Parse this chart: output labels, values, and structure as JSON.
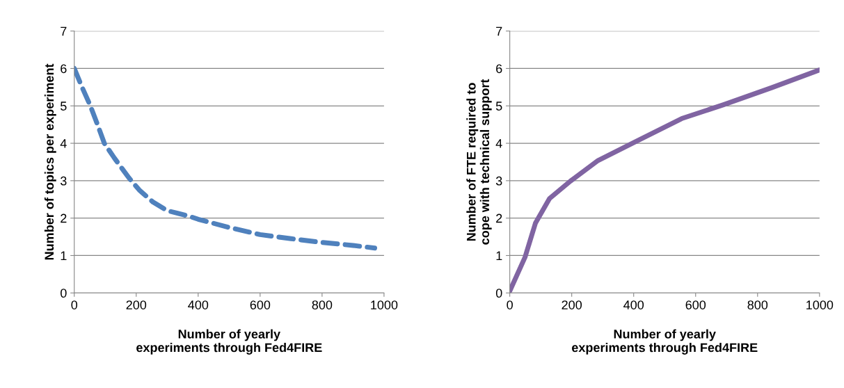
{
  "chart_data": [
    {
      "type": "line",
      "xlabel": "Number of yearly experiments through Fed4FIRE",
      "ylabel": "Number of topics per experiment",
      "xlim": [
        0,
        1000
      ],
      "ylim": [
        0,
        7
      ],
      "xticks": [
        0,
        200,
        400,
        600,
        800,
        1000
      ],
      "yticks": [
        0,
        1,
        2,
        3,
        4,
        5,
        6,
        7
      ],
      "grid": "y",
      "legend": false,
      "line_style": "dashed",
      "series": [
        {
          "color": "#4f81bd",
          "x": [
            0,
            25,
            52,
            75,
            97,
            130,
            176,
            210,
            254,
            300,
            367,
            400,
            500,
            600,
            700,
            800,
            900,
            970
          ],
          "values": [
            6.0,
            5.5,
            5.0,
            4.5,
            4.0,
            3.6,
            3.08,
            2.75,
            2.43,
            2.2,
            2.06,
            1.97,
            1.75,
            1.56,
            1.45,
            1.35,
            1.27,
            1.2
          ]
        }
      ]
    },
    {
      "type": "line",
      "xlabel": "Number of yearly experiments through Fed4FIRE",
      "ylabel": "Number of FTE required to cope with technical support",
      "xlim": [
        0,
        1000
      ],
      "ylim": [
        0,
        7
      ],
      "xticks": [
        0,
        200,
        400,
        600,
        800,
        1000
      ],
      "yticks": [
        0,
        1,
        2,
        3,
        4,
        5,
        6,
        7
      ],
      "grid": "y",
      "legend": false,
      "line_style": "solid",
      "series": [
        {
          "color": "#8064a2",
          "x": [
            0,
            49,
            83,
            128,
            196,
            285,
            420,
            555,
            690,
            847,
            1000
          ],
          "values": [
            0.05,
            0.95,
            1.87,
            2.52,
            2.99,
            3.54,
            4.1,
            4.66,
            5.03,
            5.49,
            5.96
          ]
        }
      ]
    }
  ]
}
